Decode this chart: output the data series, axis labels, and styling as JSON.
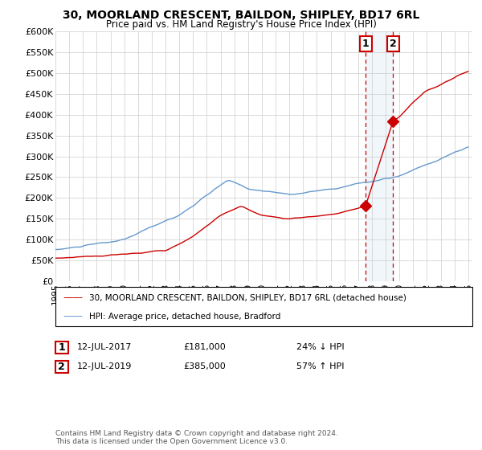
{
  "title": "30, MOORLAND CRESCENT, BAILDON, SHIPLEY, BD17 6RL",
  "subtitle": "Price paid vs. HM Land Registry's House Price Index (HPI)",
  "ylim": [
    0,
    600000
  ],
  "xlim_start": 1995,
  "xlim_end": 2025.3,
  "legend_line1": "30, MOORLAND CRESCENT, BAILDON, SHIPLEY, BD17 6RL (detached house)",
  "legend_line2": "HPI: Average price, detached house, Bradford",
  "purchase1_x": 2017.54,
  "purchase1_price": 181000,
  "purchase1_date": "12-JUL-2017",
  "purchase1_label": "24% ↓ HPI",
  "purchase2_x": 2019.54,
  "purchase2_price": 385000,
  "purchase2_date": "12-JUL-2019",
  "purchase2_label": "57% ↑ HPI",
  "footnote": "Contains HM Land Registry data © Crown copyright and database right 2024.\nThis data is licensed under the Open Government Licence v3.0.",
  "line1_color": "#cc0000",
  "line2_color": "#6699cc",
  "highlight_fill": "#ddeeff",
  "vline_color": "#cc0000"
}
